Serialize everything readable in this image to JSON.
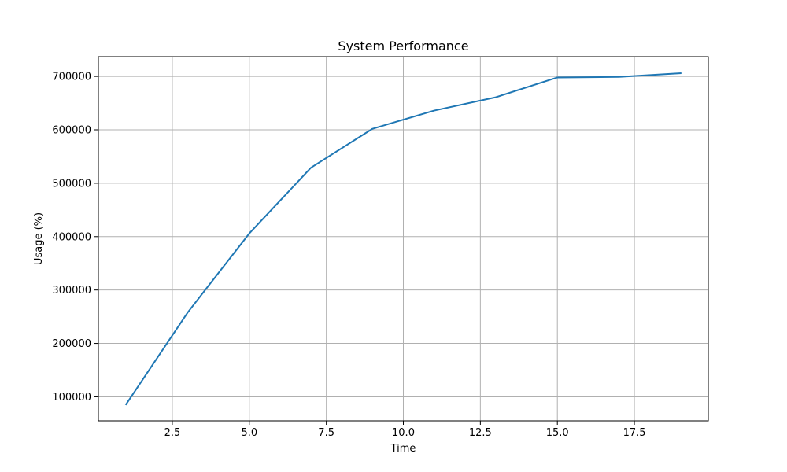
{
  "chart_data": {
    "type": "line",
    "title": "System Performance",
    "xlabel": "Time",
    "ylabel": "Usage (%)",
    "xlim": [
      0.1,
      19.9
    ],
    "ylim": [
      55000,
      737000
    ],
    "grid": true,
    "x_ticks": [
      2.5,
      5.0,
      7.5,
      10.0,
      12.5,
      15.0,
      17.5
    ],
    "x_tick_labels": [
      "2.5",
      "5.0",
      "7.5",
      "10.0",
      "12.5",
      "15.0",
      "17.5"
    ],
    "y_ticks": [
      100000,
      200000,
      300000,
      400000,
      500000,
      600000,
      700000
    ],
    "y_tick_labels": [
      "100000",
      "200000",
      "300000",
      "400000",
      "500000",
      "600000",
      "700000"
    ],
    "series": [
      {
        "color": "#1f77b4",
        "x": [
          1,
          3,
          5,
          7,
          9,
          11,
          13,
          15,
          17,
          19
        ],
        "y": [
          86000,
          258000,
          406000,
          529000,
          602000,
          636000,
          661000,
          698000,
          699000,
          706000
        ]
      }
    ]
  }
}
